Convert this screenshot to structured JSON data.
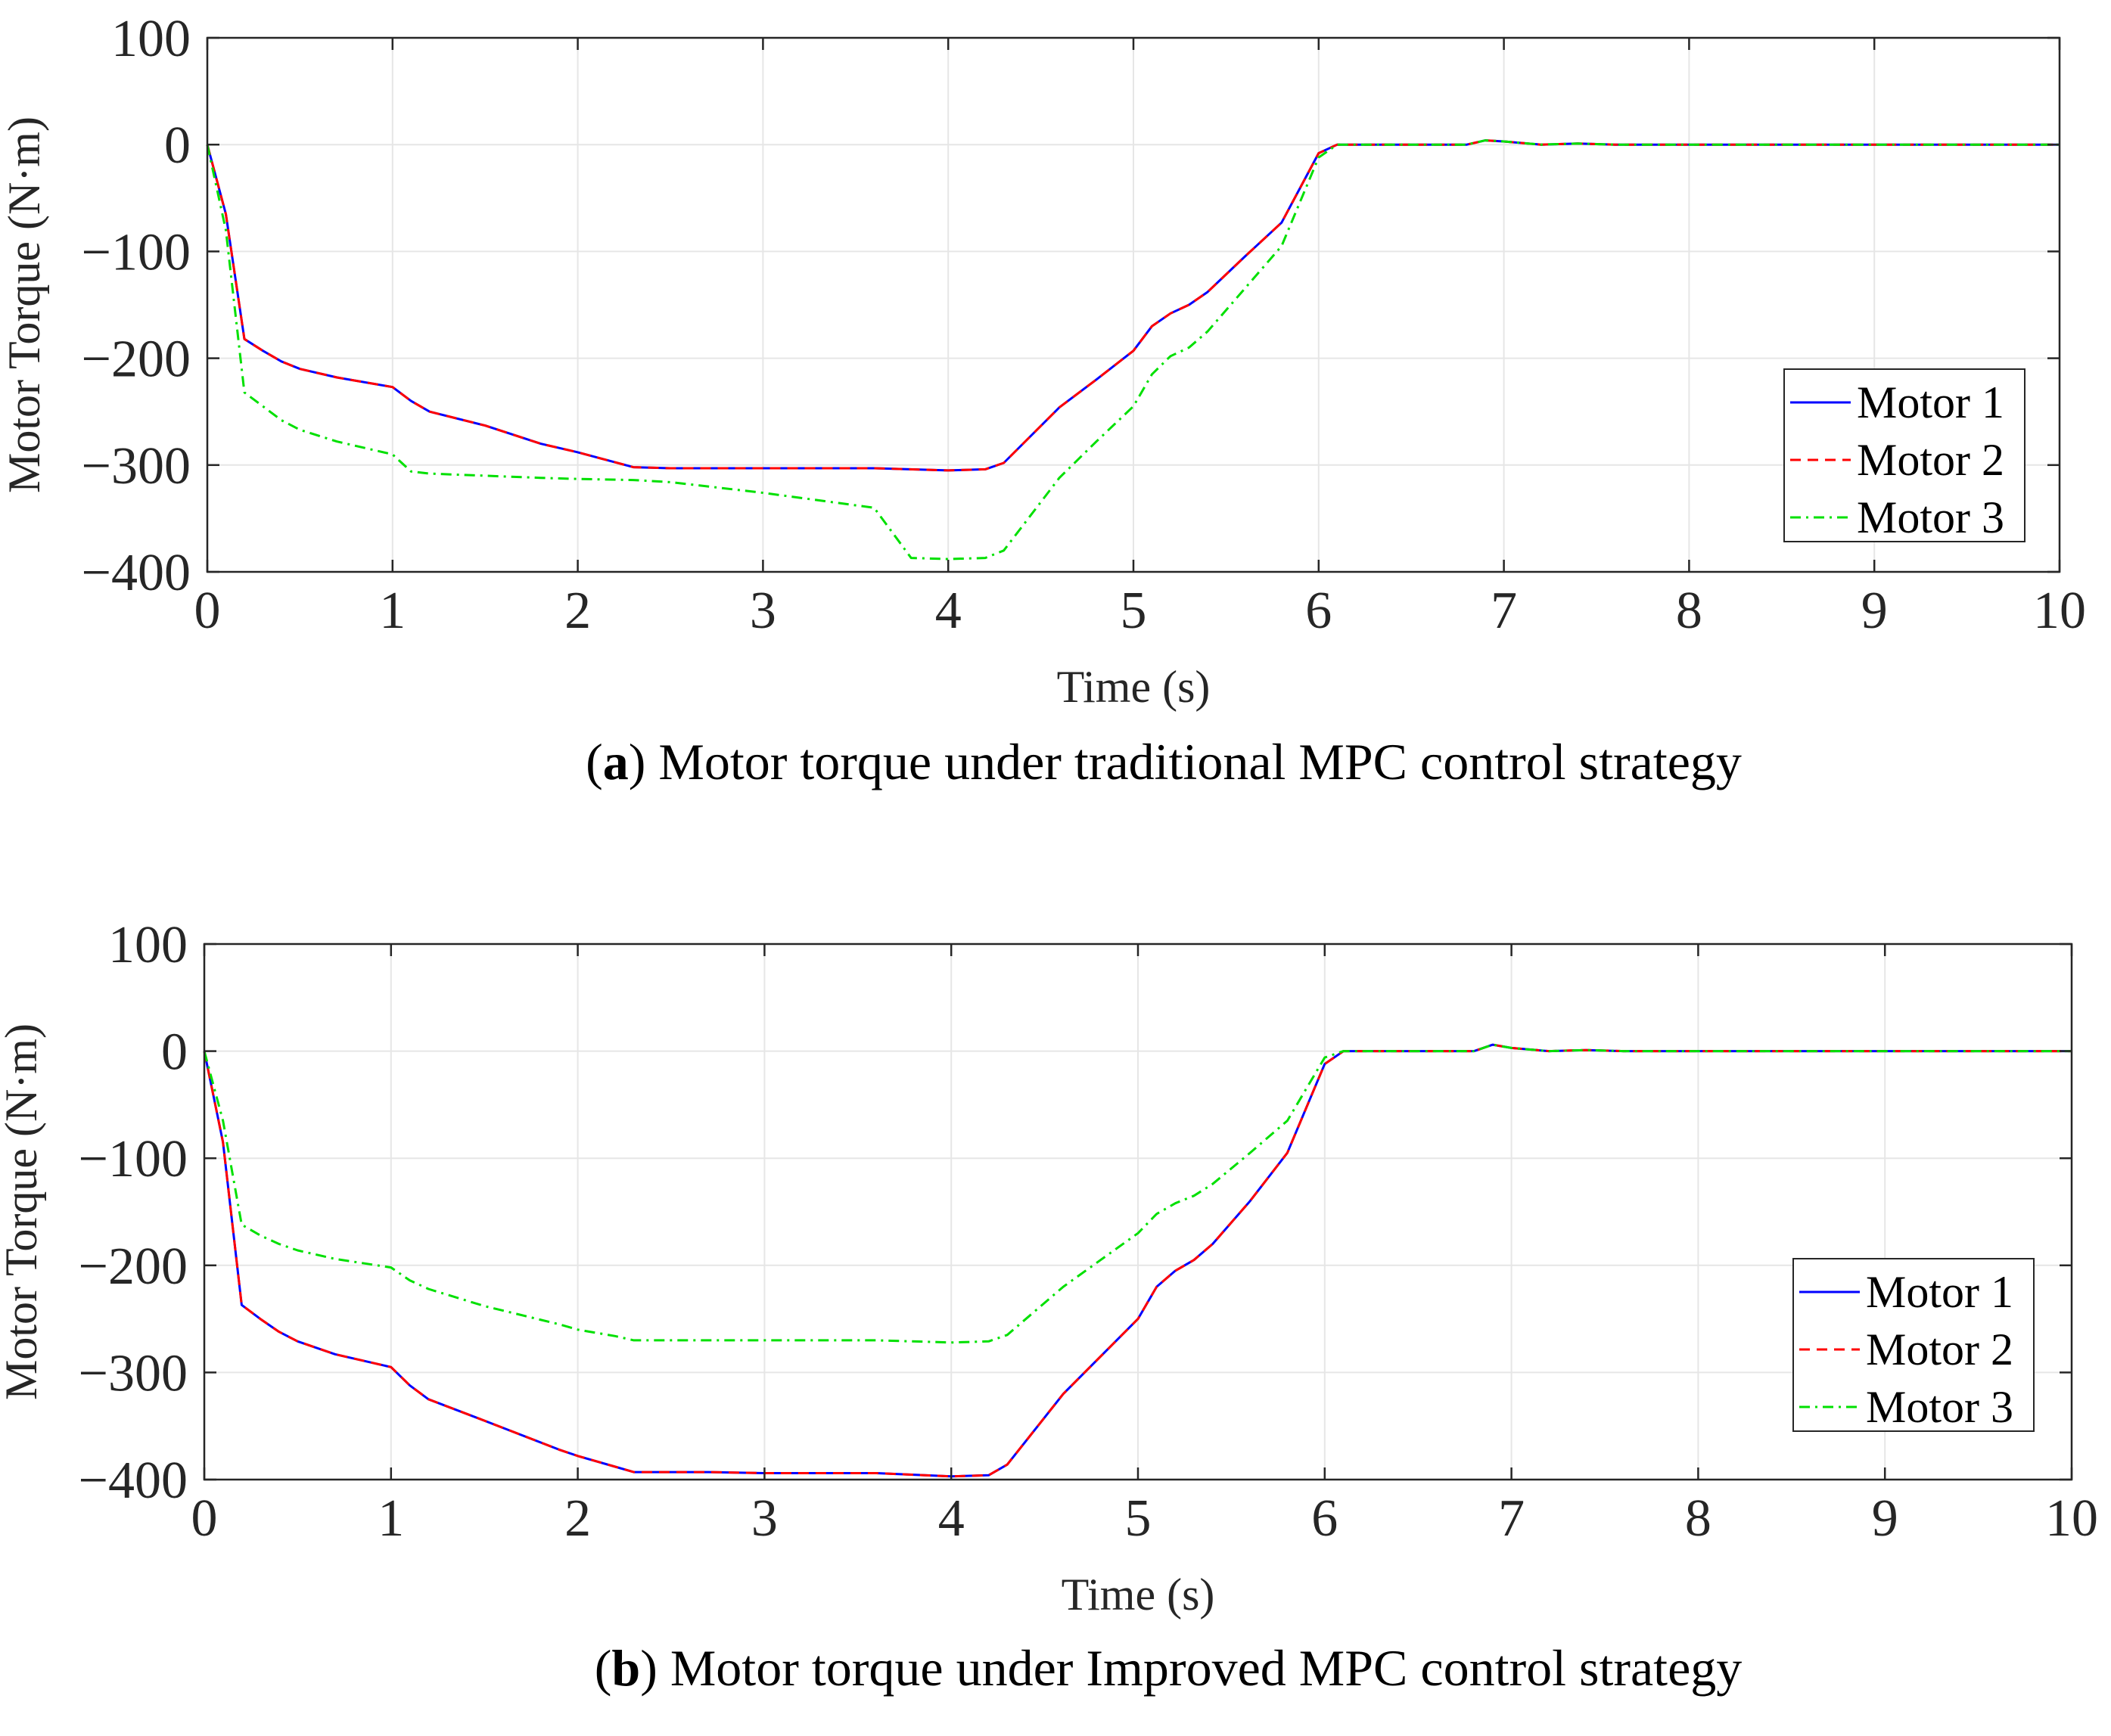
{
  "chart_data": [
    {
      "type": "line",
      "caption_letter": "a",
      "caption_open": "(",
      "caption_rest": ") Motor torque under traditional MPC control strategy",
      "xlabel": "Time (s)",
      "ylabel": "Motor Torque (N·m)",
      "xlim": [
        0,
        10
      ],
      "ylim": [
        -400,
        100
      ],
      "xticks": [
        0,
        1,
        2,
        3,
        4,
        5,
        6,
        7,
        8,
        9,
        10
      ],
      "yticks": [
        100,
        0,
        -100,
        -200,
        -300,
        -400
      ],
      "xtick_labels": [
        "0",
        "1",
        "2",
        "3",
        "4",
        "5",
        "6",
        "7",
        "8",
        "9",
        "10"
      ],
      "ytick_labels": [
        "100",
        "0",
        "−100",
        "−200",
        "−300",
        "−400"
      ],
      "grid": true,
      "legend_position": "right",
      "series": [
        {
          "name": "Motor 1",
          "color": "#0000ff",
          "dash": "solid",
          "x": [
            0,
            0.1,
            0.2,
            0.3,
            0.4,
            0.5,
            0.7,
            1.0,
            1.1,
            1.2,
            1.5,
            1.8,
            2.0,
            2.3,
            2.5,
            2.7,
            3.0,
            3.3,
            3.6,
            4.0,
            4.2,
            4.3,
            4.6,
            4.8,
            5.0,
            5.1,
            5.2,
            5.3,
            5.4,
            5.6,
            5.8,
            6.0,
            6.1,
            6.3,
            6.8,
            6.9,
            7.0,
            7.2,
            7.4,
            7.6,
            8.0,
            10.0
          ],
          "values": [
            0,
            -65,
            -182,
            -193,
            -203,
            -210,
            -218,
            -227,
            -240,
            -250,
            -263,
            -280,
            -288,
            -302,
            -303,
            -303,
            -303,
            -303,
            -303,
            -305,
            -304,
            -298,
            -246,
            -220,
            -193,
            -170,
            -158,
            -150,
            -138,
            -105,
            -73,
            -8,
            0,
            0,
            0,
            4,
            3,
            0,
            1,
            0,
            0,
            0
          ]
        },
        {
          "name": "Motor 2",
          "color": "#ff0000",
          "dash": "dashed",
          "x": [
            0,
            0.1,
            0.2,
            0.3,
            0.4,
            0.5,
            0.7,
            1.0,
            1.1,
            1.2,
            1.5,
            1.8,
            2.0,
            2.3,
            2.5,
            2.7,
            3.0,
            3.3,
            3.6,
            4.0,
            4.2,
            4.3,
            4.6,
            4.8,
            5.0,
            5.1,
            5.2,
            5.3,
            5.4,
            5.6,
            5.8,
            6.0,
            6.1,
            6.3,
            6.8,
            6.9,
            7.0,
            7.2,
            7.4,
            7.6,
            8.0,
            10.0
          ],
          "values": [
            0,
            -65,
            -182,
            -193,
            -203,
            -210,
            -218,
            -227,
            -240,
            -250,
            -263,
            -280,
            -288,
            -302,
            -303,
            -303,
            -303,
            -303,
            -303,
            -305,
            -304,
            -298,
            -246,
            -220,
            -193,
            -170,
            -158,
            -150,
            -138,
            -105,
            -73,
            -8,
            0,
            0,
            0,
            4,
            3,
            0,
            1,
            0,
            0,
            0
          ]
        },
        {
          "name": "Motor 3",
          "color": "#00e000",
          "dash": "dashdot",
          "x": [
            0,
            0.1,
            0.2,
            0.3,
            0.4,
            0.5,
            0.7,
            1.0,
            1.1,
            1.2,
            1.5,
            1.8,
            2.0,
            2.3,
            2.5,
            2.7,
            3.0,
            3.3,
            3.6,
            3.8,
            4.0,
            4.2,
            4.3,
            4.6,
            4.8,
            5.0,
            5.1,
            5.2,
            5.3,
            5.4,
            5.6,
            5.8,
            6.0,
            6.1,
            6.3,
            6.8,
            6.9,
            7.0,
            7.2,
            7.4,
            7.6,
            8.0,
            10.0
          ],
          "values": [
            0,
            -80,
            -232,
            -245,
            -258,
            -267,
            -278,
            -290,
            -306,
            -308,
            -310,
            -312,
            -313,
            -314,
            -316,
            -320,
            -326,
            -333,
            -340,
            -387,
            -388,
            -387,
            -380,
            -312,
            -278,
            -245,
            -215,
            -198,
            -190,
            -175,
            -135,
            -95,
            -12,
            0,
            0,
            0,
            4,
            3,
            0,
            1,
            0,
            0,
            0
          ]
        }
      ]
    },
    {
      "type": "line",
      "caption_letter": "b",
      "caption_open": "(",
      "caption_rest": ") Motor torque under Improved MPC control strategy",
      "xlabel": "Time (s)",
      "ylabel": "Motor Torque (N·m)",
      "xlim": [
        0,
        10
      ],
      "ylim": [
        -400,
        100
      ],
      "xticks": [
        0,
        1,
        2,
        3,
        4,
        5,
        6,
        7,
        8,
        9,
        10
      ],
      "yticks": [
        100,
        0,
        -100,
        -200,
        -300,
        -400
      ],
      "xtick_labels": [
        "0",
        "1",
        "2",
        "3",
        "4",
        "5",
        "6",
        "7",
        "8",
        "9",
        "10"
      ],
      "ytick_labels": [
        "100",
        "0",
        "−100",
        "−200",
        "−300",
        "−400"
      ],
      "grid": true,
      "legend_position": "right",
      "series": [
        {
          "name": "Motor 1",
          "color": "#0000ff",
          "dash": "solid",
          "x": [
            0,
            0.1,
            0.2,
            0.3,
            0.4,
            0.5,
            0.7,
            1.0,
            1.1,
            1.2,
            1.5,
            1.9,
            2.0,
            2.2,
            2.3,
            2.5,
            2.7,
            3.0,
            3.3,
            3.6,
            4.0,
            4.2,
            4.3,
            4.6,
            4.8,
            5.0,
            5.1,
            5.2,
            5.3,
            5.4,
            5.6,
            5.8,
            6.0,
            6.1,
            6.3,
            6.8,
            6.9,
            7.0,
            7.2,
            7.4,
            7.6,
            8.0,
            10.0
          ],
          "values": [
            0,
            -85,
            -237,
            -250,
            -262,
            -271,
            -283,
            -295,
            -312,
            -325,
            -345,
            -372,
            -378,
            -388,
            -393,
            -393,
            -393,
            -394,
            -394,
            -394,
            -397,
            -396,
            -386,
            -320,
            -285,
            -250,
            -220,
            -205,
            -195,
            -180,
            -140,
            -95,
            -12,
            0,
            0,
            0,
            6,
            3,
            0,
            1,
            0,
            0,
            0
          ]
        },
        {
          "name": "Motor 2",
          "color": "#ff0000",
          "dash": "dashed",
          "x": [
            0,
            0.1,
            0.2,
            0.3,
            0.4,
            0.5,
            0.7,
            1.0,
            1.1,
            1.2,
            1.5,
            1.9,
            2.0,
            2.2,
            2.3,
            2.5,
            2.7,
            3.0,
            3.3,
            3.6,
            4.0,
            4.2,
            4.3,
            4.6,
            4.8,
            5.0,
            5.1,
            5.2,
            5.3,
            5.4,
            5.6,
            5.8,
            6.0,
            6.1,
            6.3,
            6.8,
            6.9,
            7.0,
            7.2,
            7.4,
            7.6,
            8.0,
            10.0
          ],
          "values": [
            0,
            -85,
            -237,
            -250,
            -262,
            -271,
            -283,
            -295,
            -312,
            -325,
            -345,
            -372,
            -378,
            -388,
            -393,
            -393,
            -393,
            -394,
            -394,
            -394,
            -397,
            -396,
            -386,
            -320,
            -285,
            -250,
            -220,
            -205,
            -195,
            -180,
            -140,
            -95,
            -12,
            0,
            0,
            0,
            6,
            3,
            0,
            1,
            0,
            0,
            0
          ]
        },
        {
          "name": "Motor 3",
          "color": "#00e000",
          "dash": "dashdot",
          "x": [
            0,
            0.1,
            0.2,
            0.3,
            0.4,
            0.5,
            0.7,
            1.0,
            1.1,
            1.2,
            1.5,
            1.9,
            2.0,
            2.2,
            2.3,
            2.5,
            2.7,
            3.0,
            3.3,
            3.6,
            4.0,
            4.2,
            4.3,
            4.6,
            4.8,
            5.0,
            5.1,
            5.2,
            5.3,
            5.4,
            5.6,
            5.8,
            6.0,
            6.1,
            6.3,
            6.8,
            6.9,
            7.0,
            7.2,
            7.4,
            7.6,
            8.0,
            10.0
          ],
          "values": [
            0,
            -65,
            -162,
            -172,
            -180,
            -186,
            -194,
            -202,
            -214,
            -222,
            -238,
            -255,
            -260,
            -266,
            -270,
            -270,
            -270,
            -270,
            -270,
            -270,
            -272,
            -271,
            -265,
            -220,
            -195,
            -170,
            -152,
            -142,
            -135,
            -124,
            -95,
            -65,
            -6,
            0,
            0,
            0,
            6,
            3,
            0,
            1,
            0,
            0,
            0
          ]
        }
      ]
    }
  ]
}
